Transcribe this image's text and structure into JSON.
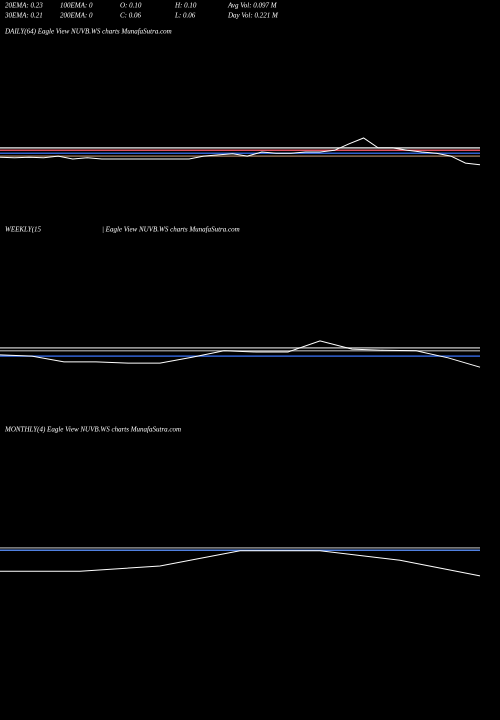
{
  "header": {
    "rows": [
      [
        "20EMA: 0.23",
        "100EMA: 0",
        "O: 0.10",
        "H: 0.10",
        "Avg Vol: 0.097 M"
      ],
      [
        "30EMA: 0.21",
        "200EMA: 0",
        "C: 0.06",
        "L: 0.06",
        "Day Vol: 0.221 M"
      ]
    ]
  },
  "chart_data": [
    {
      "type": "line",
      "title": "DAILY(64) Eagle  View  NUVB.WS charts MunafaSutra.com",
      "ylim": [
        0,
        0.3
      ],
      "series": [
        {
          "color": "#cccccc",
          "values": [
            0.115,
            0.115
          ]
        },
        {
          "color": "#e05060",
          "values": [
            0.111,
            0.111
          ]
        },
        {
          "color": "#3060d0",
          "values": [
            0.106,
            0.106
          ]
        },
        {
          "color": "#8a6a50",
          "values": [
            0.101,
            0.101
          ]
        },
        {
          "color": "#ffffff",
          "values": [
            0.099,
            0.098,
            0.099,
            0.098,
            0.101,
            0.096,
            0.098,
            0.096,
            0.096,
            0.096,
            0.096,
            0.096,
            0.096,
            0.096,
            0.101,
            0.103,
            0.105,
            0.101,
            0.108,
            0.106,
            0.106,
            0.108,
            0.108,
            0.111,
            0.122,
            0.132,
            0.115,
            0.115,
            0.111,
            0.108,
            0.106,
            0.101,
            0.089,
            0.086
          ]
        }
      ]
    },
    {
      "type": "line",
      "title": "WEEKLY(15",
      "subtitle": "| Eagle  View  NUVB.WS charts MunafaSutra.com",
      "ylim": [
        0,
        0.3
      ],
      "series": [
        {
          "color": "#aaaaaa",
          "values": [
            0.115,
            0.115
          ]
        },
        {
          "color": "#888888",
          "values": [
            0.11,
            0.11
          ]
        },
        {
          "color": "#3060d0",
          "values": [
            0.101,
            0.101
          ]
        },
        {
          "color": "#ffffff",
          "values": [
            0.103,
            0.101,
            0.091,
            0.091,
            0.089,
            0.089,
            0.099,
            0.11,
            0.108,
            0.108,
            0.127,
            0.113,
            0.111,
            0.11,
            0.098,
            0.082
          ]
        }
      ]
    },
    {
      "type": "line",
      "title": "MONTHLY(4) Eagle  View  NUVB.WS charts MunafaSutra.com",
      "ylim": [
        0,
        0.3
      ],
      "series": [
        {
          "color": "#888888",
          "values": [
            0.115,
            0.115
          ]
        },
        {
          "color": "#5080e0",
          "values": [
            0.111,
            0.111
          ]
        },
        {
          "color": "#ffffff",
          "values": [
            0.075,
            0.075,
            0.084,
            0.11,
            0.11,
            0.094,
            0.067
          ]
        }
      ]
    }
  ]
}
